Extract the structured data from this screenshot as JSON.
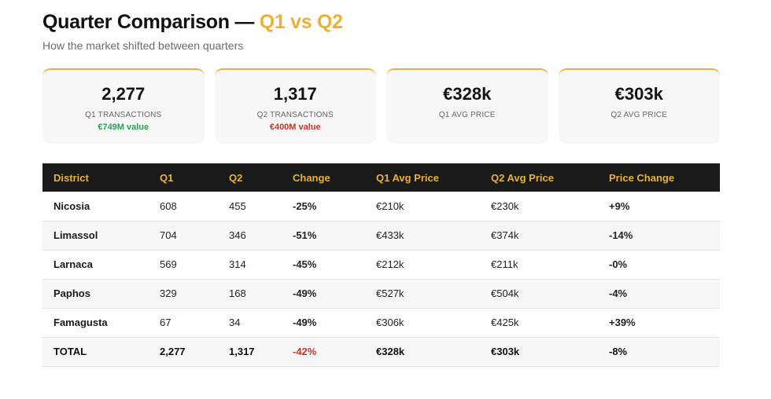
{
  "header": {
    "title_main": "Quarter Comparison —",
    "title_accent": "Q1 vs Q2",
    "subtitle": "How the market shifted between quarters"
  },
  "cards": [
    {
      "value": "2,277",
      "label": "Q1 TRANSACTIONS",
      "sub": "€749M value",
      "sub_tone": "pos"
    },
    {
      "value": "1,317",
      "label": "Q2 TRANSACTIONS",
      "sub": "€400M value",
      "sub_tone": "neg"
    },
    {
      "value": "€328k",
      "label": "Q1 AVG PRICE"
    },
    {
      "value": "€303k",
      "label": "Q2 AVG PRICE"
    }
  ],
  "table": {
    "columns": [
      "District",
      "Q1",
      "Q2",
      "Change",
      "Q1 Avg Price",
      "Q2 Avg Price",
      "Price Change"
    ],
    "rows": [
      {
        "district": "Nicosia",
        "q1": "608",
        "q2": "455",
        "change": "-25%",
        "q1_avg": "€210k",
        "q2_avg": "€230k",
        "price_change": "+9%"
      },
      {
        "district": "Limassol",
        "q1": "704",
        "q2": "346",
        "change": "-51%",
        "q1_avg": "€433k",
        "q2_avg": "€374k",
        "price_change": "-14%"
      },
      {
        "district": "Larnaca",
        "q1": "569",
        "q2": "314",
        "change": "-45%",
        "q1_avg": "€212k",
        "q2_avg": "€211k",
        "price_change": "-0%"
      },
      {
        "district": "Paphos",
        "q1": "329",
        "q2": "168",
        "change": "-49%",
        "q1_avg": "€527k",
        "q2_avg": "€504k",
        "price_change": "-4%"
      },
      {
        "district": "Famagusta",
        "q1": "67",
        "q2": "34",
        "change": "-49%",
        "q1_avg": "€306k",
        "q2_avg": "€425k",
        "price_change": "+39%"
      }
    ],
    "total": {
      "district": "TOTAL",
      "q1": "2,277",
      "q2": "1,317",
      "change": "-42%",
      "q1_avg": "€328k",
      "q2_avg": "€303k",
      "price_change": "-8%"
    }
  },
  "colors": {
    "accent": "#e8b23a",
    "positive": "#2e9e55",
    "negative": "#c0392b",
    "header_bg": "#1a1a1a"
  }
}
